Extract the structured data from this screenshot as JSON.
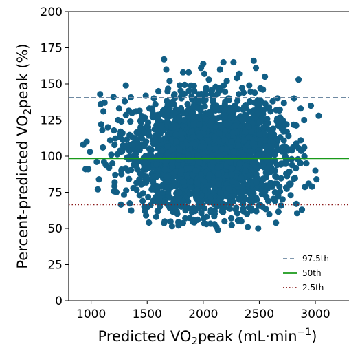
{
  "chart_data": {
    "type": "scatter",
    "xlabel": "Predicted VO₂peak (mL·min⁻¹)",
    "xlabel_parts": {
      "a": "Predicted VO",
      "sub": "2",
      "b": "peak (mL",
      "dot": "·",
      "c": "min",
      "sup": "−1",
      "d": ")"
    },
    "ylabel": "Percent-predicted VO₂peak (%)",
    "ylabel_parts": {
      "a": "Percent-predicted VO",
      "sub": "2",
      "b": "peak (%)"
    },
    "xlim": [
      800,
      3300
    ],
    "ylim": [
      0,
      200
    ],
    "xticks": [
      1000,
      1500,
      2000,
      2500,
      3000
    ],
    "yticks": [
      0,
      25,
      50,
      75,
      100,
      125,
      150,
      175,
      200
    ],
    "grid": false,
    "legend_position": "lower-right",
    "point_color": "#115e85",
    "reference_lines": [
      {
        "label": "97.5th",
        "y": 140.5,
        "style": "dashed",
        "color": "#6f8aa3"
      },
      {
        "label": "50th",
        "y": 98.5,
        "style": "solid",
        "color": "#1a9a1a"
      },
      {
        "label": "2.5th",
        "y": 66.5,
        "style": "dotted",
        "color": "#8b1a1a"
      }
    ],
    "series": [
      {
        "points": [
          [
            930,
            108
          ],
          [
            950,
            91
          ],
          [
            960,
            110
          ],
          [
            975,
            91
          ],
          [
            990,
            103
          ],
          [
            1050,
            96
          ],
          [
            1060,
            77
          ],
          [
            1070,
            84
          ],
          [
            1080,
            143
          ],
          [
            1085,
            136
          ],
          [
            1090,
            122
          ],
          [
            1100,
            118
          ],
          [
            1105,
            106
          ],
          [
            1110,
            131
          ],
          [
            1115,
            96
          ],
          [
            1120,
            137
          ],
          [
            1130,
            94
          ],
          [
            1150,
            120
          ],
          [
            1160,
            92
          ],
          [
            1170,
            111
          ],
          [
            1180,
            101
          ],
          [
            1190,
            95
          ],
          [
            1200,
            141
          ],
          [
            1210,
            82
          ],
          [
            1215,
            87
          ],
          [
            1240,
            125
          ],
          [
            1250,
            133
          ],
          [
            1260,
            113
          ],
          [
            1270,
            90
          ],
          [
            1280,
            116
          ],
          [
            1300,
            138
          ],
          [
            1310,
            149
          ],
          [
            1320,
            99
          ],
          [
            1340,
            104
          ],
          [
            1350,
            124
          ],
          [
            1370,
            113
          ],
          [
            1380,
            94
          ],
          [
            1390,
            101
          ],
          [
            1400,
            131
          ],
          [
            1420,
            117
          ],
          [
            1430,
            84
          ],
          [
            1450,
            126
          ],
          [
            1460,
            69
          ],
          [
            1470,
            107
          ],
          [
            1480,
            62
          ],
          [
            1490,
            59
          ],
          [
            1500,
            121
          ],
          [
            1520,
            133
          ],
          [
            1530,
            66
          ],
          [
            1540,
            77
          ],
          [
            1560,
            140
          ],
          [
            1570,
            112
          ],
          [
            1580,
            58
          ],
          [
            1600,
            145
          ],
          [
            1610,
            71
          ],
          [
            1630,
            121
          ],
          [
            1650,
            167
          ],
          [
            1660,
            68
          ],
          [
            1670,
            160
          ],
          [
            1690,
            135
          ],
          [
            1700,
            152
          ],
          [
            1720,
            79
          ],
          [
            1740,
            142
          ],
          [
            1750,
            64
          ],
          [
            1760,
            110
          ],
          [
            1780,
            52
          ],
          [
            1790,
            149
          ],
          [
            1800,
            88
          ],
          [
            1820,
            158
          ],
          [
            1840,
            57
          ],
          [
            1860,
            136
          ],
          [
            1870,
            158
          ],
          [
            1880,
            74
          ],
          [
            1900,
            61
          ],
          [
            1920,
            145
          ],
          [
            1950,
            56
          ],
          [
            1960,
            143
          ],
          [
            1980,
            161
          ],
          [
            2000,
            164
          ],
          [
            2010,
            157
          ],
          [
            2030,
            58
          ],
          [
            2050,
            153
          ],
          [
            2070,
            62
          ],
          [
            2080,
            146
          ],
          [
            2100,
            53
          ],
          [
            2110,
            148
          ],
          [
            2130,
            49
          ],
          [
            2150,
            160
          ],
          [
            2180,
            165
          ],
          [
            2190,
            55
          ],
          [
            2210,
            152
          ],
          [
            2230,
            139
          ],
          [
            2250,
            57
          ],
          [
            2270,
            165
          ],
          [
            2290,
            63
          ],
          [
            2300,
            154
          ],
          [
            2320,
            157
          ],
          [
            2340,
            55
          ],
          [
            2360,
            144
          ],
          [
            2390,
            60
          ],
          [
            2410,
            149
          ],
          [
            2430,
            68
          ],
          [
            2450,
            166
          ],
          [
            2470,
            161
          ],
          [
            2490,
            50
          ],
          [
            2510,
            147
          ],
          [
            2530,
            65
          ],
          [
            2550,
            155
          ],
          [
            2580,
            69
          ],
          [
            2600,
            131
          ],
          [
            2620,
            138
          ],
          [
            2640,
            75
          ],
          [
            2660,
            126
          ],
          [
            2680,
            79
          ],
          [
            2700,
            119
          ],
          [
            2720,
            121
          ],
          [
            2740,
            88
          ],
          [
            2760,
            114
          ],
          [
            2780,
            73
          ],
          [
            2800,
            106
          ],
          [
            2810,
            140
          ],
          [
            2830,
            67
          ],
          [
            2850,
            153
          ],
          [
            2870,
            111
          ],
          [
            2880,
            63
          ],
          [
            2900,
            125
          ],
          [
            2920,
            95
          ],
          [
            2940,
            81
          ],
          [
            2960,
            135
          ],
          [
            2970,
            79
          ],
          [
            3000,
            90
          ],
          [
            3010,
            84
          ],
          [
            3030,
            128
          ]
        ],
        "dense_core": {
          "x_center": 2050,
          "x_spread": 330,
          "y_center": 100,
          "y_spread": 19,
          "approx_count": 2400
        }
      }
    ]
  }
}
